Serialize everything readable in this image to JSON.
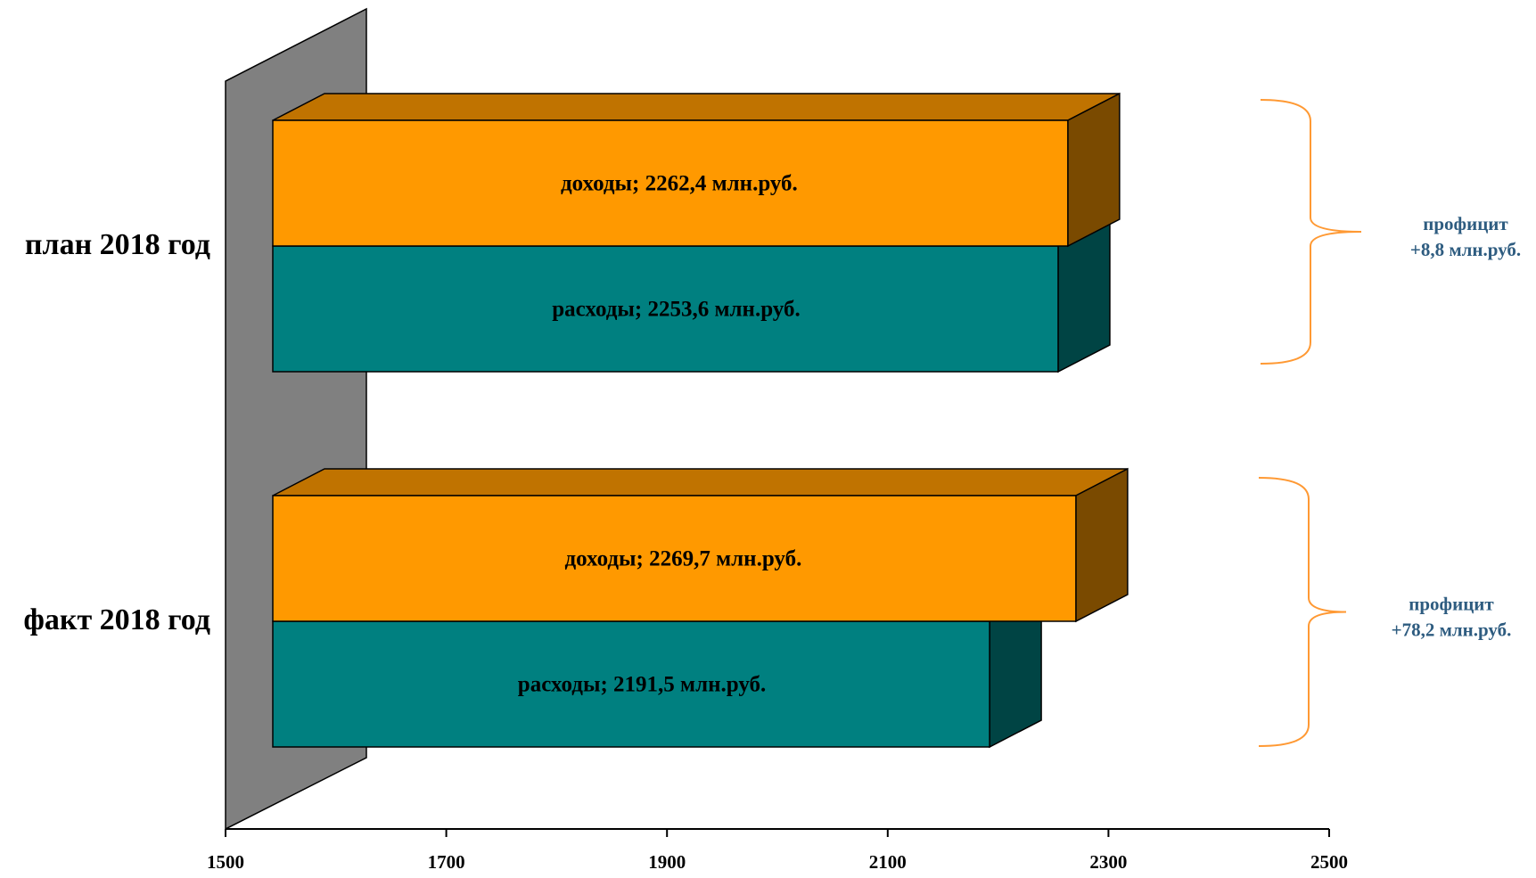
{
  "chart_data": {
    "type": "bar",
    "orientation": "horizontal",
    "style": "3d",
    "categories": [
      "план 2018 год",
      "факт 2018 год"
    ],
    "series": [
      {
        "values": [
          2262.4,
          2269.7
        ],
        "labels": [
          "доходы; 2262,4 млн.руб.",
          "доходы; 2269,7 млн.руб."
        ],
        "color": "#FF9900"
      },
      {
        "values": [
          2253.6,
          2191.5
        ],
        "labels": [
          "расходы; 2253,6 млн.руб.",
          "расходы; 2191,5 млн.руб."
        ],
        "color": "#008080"
      }
    ],
    "annotations": [
      {
        "line1": "профицит",
        "line2": "+8,8 млн.руб.",
        "category": "план 2018 год"
      },
      {
        "line1": "профицит",
        "line2": "+78,2 млн.руб.",
        "category": "факт 2018 год"
      }
    ],
    "x_ticks": [
      "1500",
      "1700",
      "1900",
      "2100",
      "2300",
      "2500"
    ],
    "xlim": [
      1500,
      2500
    ],
    "grid": false,
    "legend": "none",
    "colors": {
      "income_front": "#FF9900",
      "income_top": "#C07300",
      "income_side": "#7A4A00",
      "expense_front": "#008080",
      "expense_side": "#004444",
      "wall": "#808080",
      "bracket": "#FF9933",
      "annotation_text": "#2E5C80"
    }
  }
}
